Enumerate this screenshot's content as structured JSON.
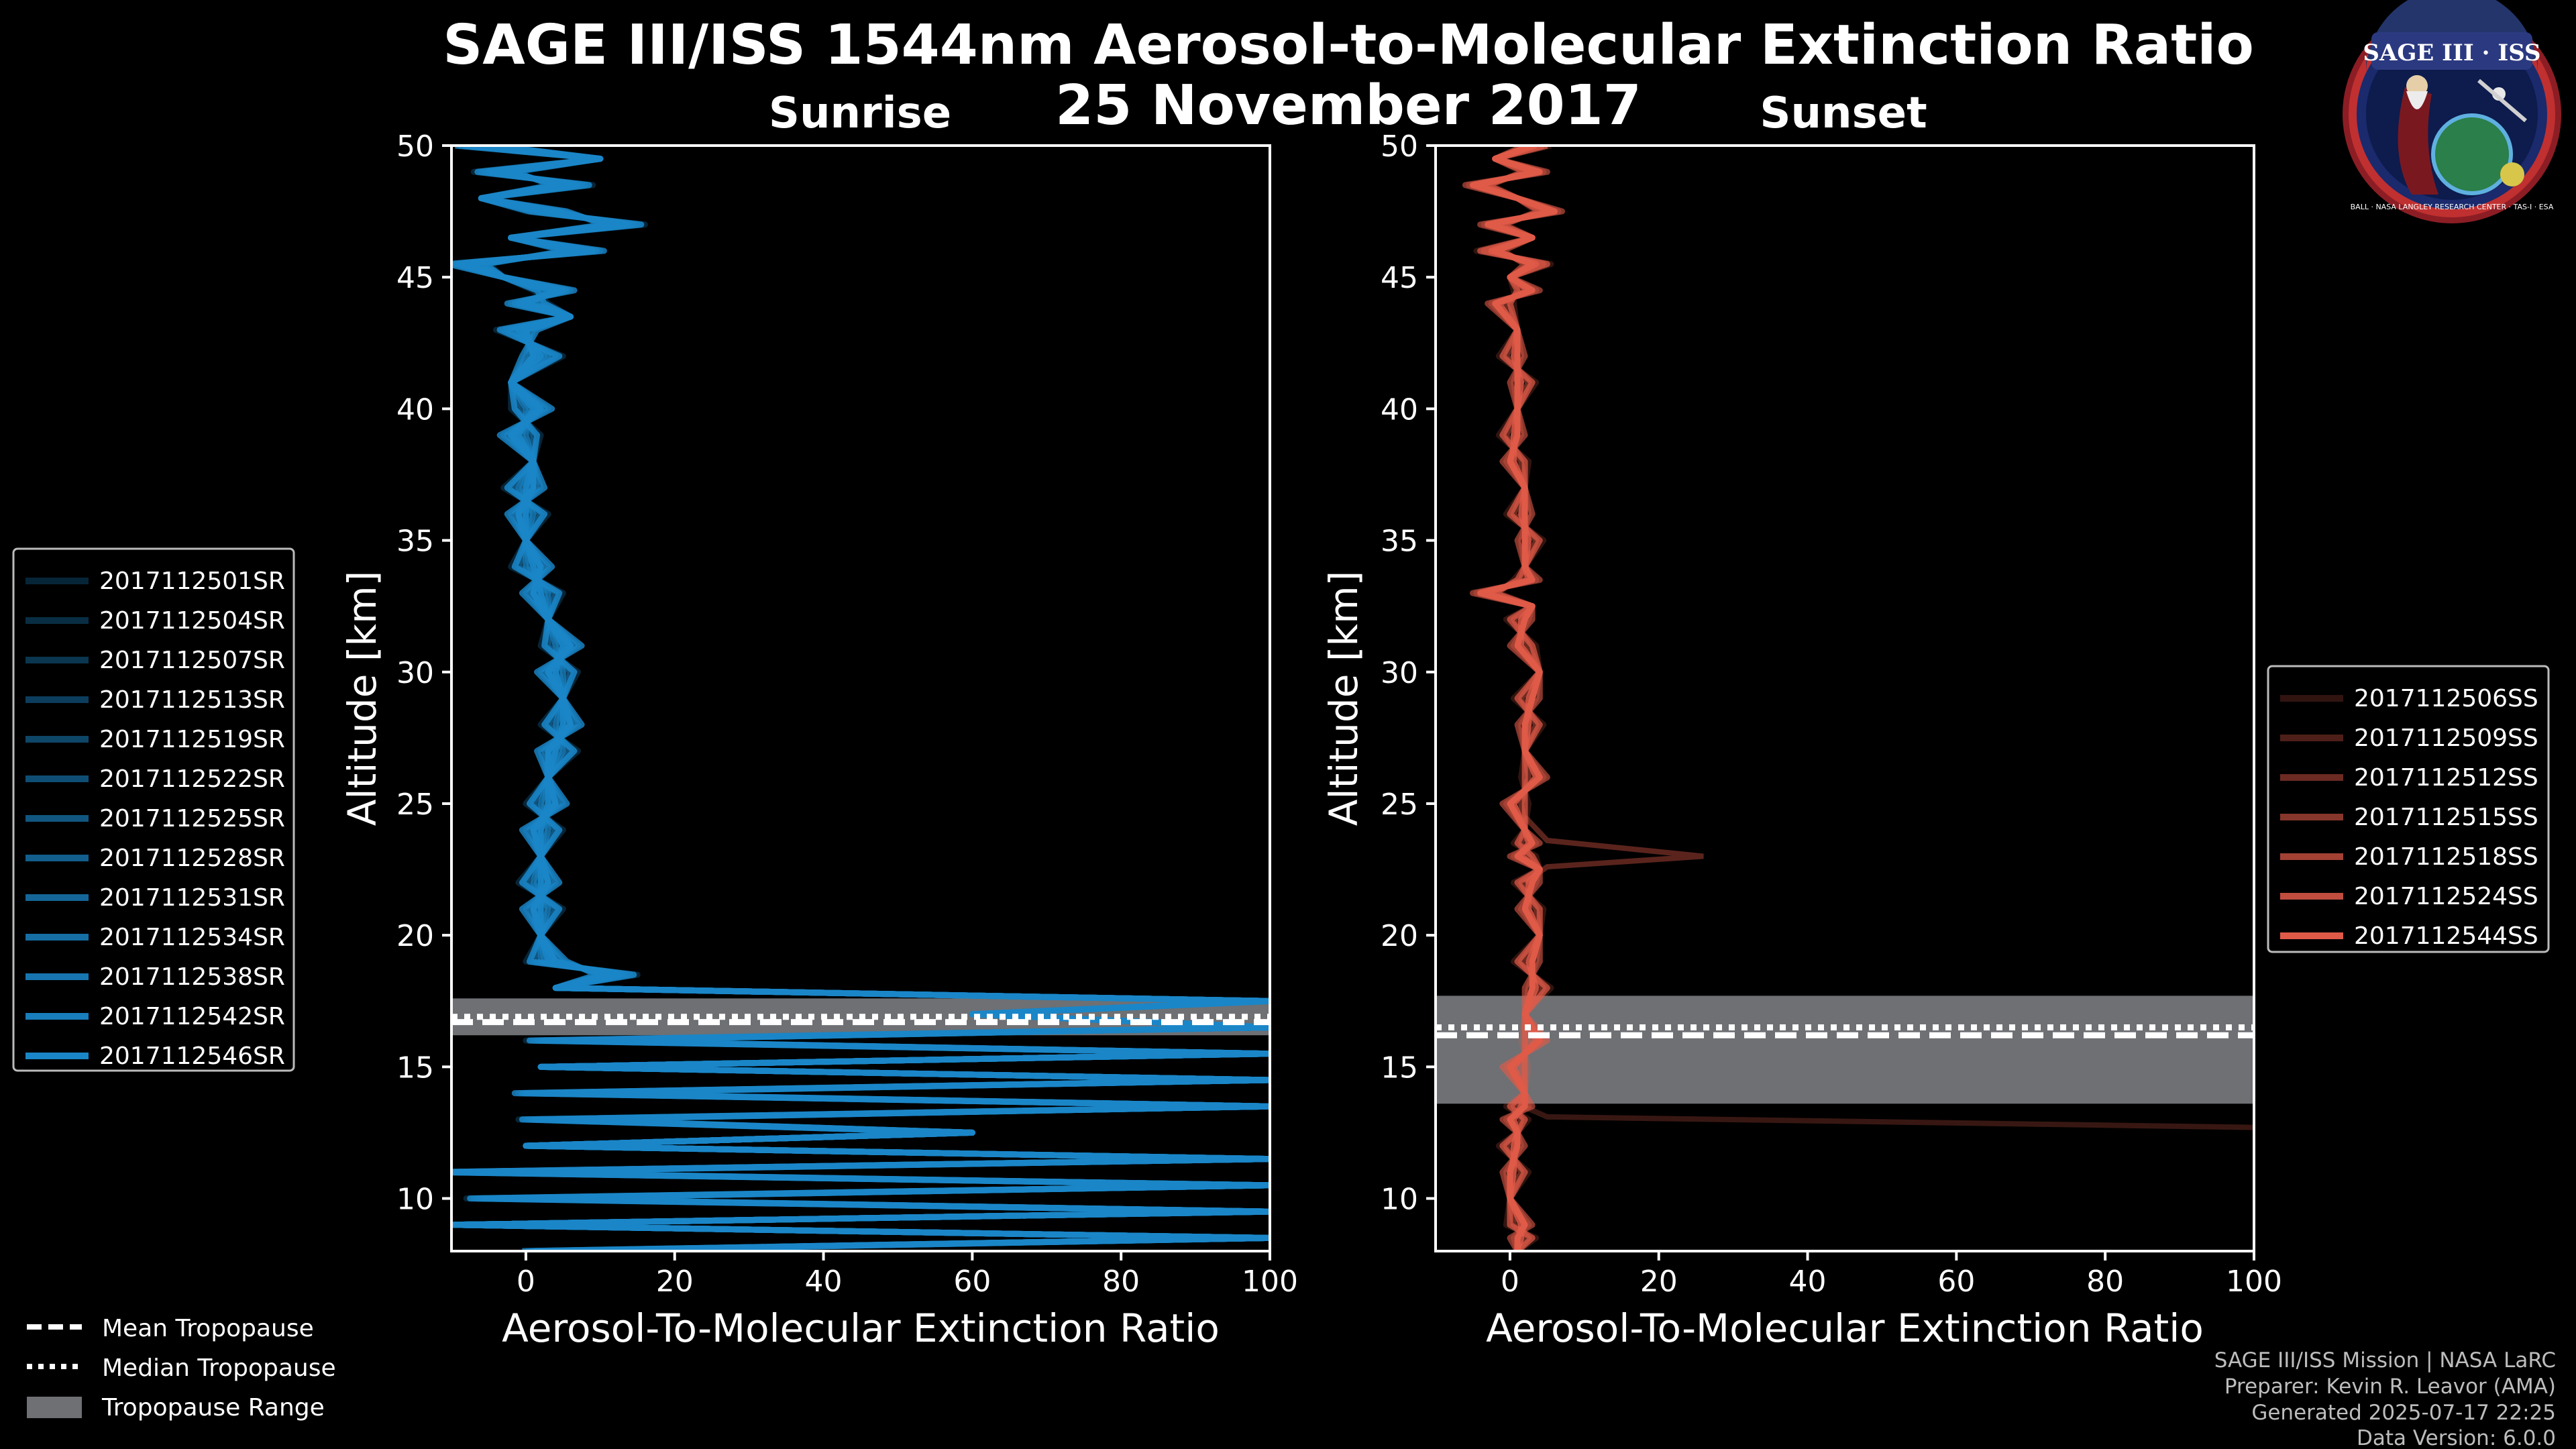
{
  "title": {
    "main": "SAGE III/ISS 1544nm Aerosol-to-Molecular Extinction Ratio",
    "date": "25 November 2017"
  },
  "logo": {
    "text": "SAGE III · ISS",
    "ring_text": "BALL · NASA LANGLEY RESEARCH CENTER · TAS-I · ESA"
  },
  "colors": {
    "sunrise": "#1a86c8",
    "sunset": "#e05a48",
    "tropopause_band": "#6e7074",
    "background": "#000000"
  },
  "credits": {
    "line1": "SAGE III/ISS Mission | NASA LaRC",
    "line2": "Preparer: Kevin R. Leavor (AMA)",
    "line3": "Generated 2025-07-17 22:25",
    "line4": "Data Version: 6.0.0"
  },
  "tropo_legend": {
    "mean": "Mean Tropopause",
    "median": "Median Tropopause",
    "range": "Tropopause Range"
  },
  "chart_data": [
    {
      "type": "line",
      "title": "Sunrise",
      "xlabel": "Aerosol-To-Molecular Extinction Ratio",
      "ylabel": "Altitude [km]",
      "xlim": [
        -10,
        100
      ],
      "ylim": [
        8,
        50
      ],
      "xticks": [
        0,
        20,
        40,
        60,
        80,
        100
      ],
      "yticks": [
        10,
        15,
        20,
        25,
        30,
        35,
        40,
        45,
        50
      ],
      "legend_position": "left",
      "tropopause": {
        "mean": 16.7,
        "median": 16.9,
        "range": [
          16.2,
          17.6
        ]
      },
      "series_names": [
        "2017112501SR",
        "2017112504SR",
        "2017112507SR",
        "2017112513SR",
        "2017112519SR",
        "2017112522SR",
        "2017112525SR",
        "2017112528SR",
        "2017112531SR",
        "2017112534SR",
        "2017112538SR",
        "2017112542SR",
        "2017112546SR"
      ],
      "series_alpha": [
        0.28,
        0.34,
        0.4,
        0.46,
        0.52,
        0.58,
        0.64,
        0.7,
        0.76,
        0.82,
        0.88,
        0.94,
        1.0
      ],
      "profile_altitudes": [
        50,
        49.5,
        49,
        48.5,
        48,
        47.5,
        47,
        46.5,
        46,
        45.5,
        45,
        44.5,
        44,
        43.5,
        43,
        42,
        41,
        40,
        39,
        38,
        37,
        36,
        35,
        34,
        33,
        32,
        31,
        30,
        29,
        28,
        27,
        26,
        25,
        24,
        23,
        22,
        21,
        20,
        19,
        18.5,
        18,
        17.5,
        17,
        16.5,
        16,
        15.5,
        15,
        14.5,
        14,
        13.5,
        13,
        12.5,
        12,
        11.5,
        11,
        10.5,
        10,
        9.5,
        9,
        8.5,
        8
      ],
      "profile_values": [
        -7,
        10,
        -4,
        6,
        -6,
        3,
        13,
        -2,
        8,
        -8,
        -3,
        4,
        0,
        6,
        -1,
        2,
        -2,
        1,
        -1,
        1,
        0,
        0,
        0,
        1,
        2,
        3,
        5,
        4,
        5,
        5,
        4,
        3,
        3,
        2,
        2,
        2,
        2,
        2,
        3,
        12,
        4,
        100,
        60,
        100,
        3,
        100,
        2,
        100,
        1,
        100,
        2,
        60,
        0,
        100,
        -10,
        100,
        -5,
        100,
        -10,
        100,
        2
      ],
      "series": [
        {
          "name": "2017112501SR",
          "dx": -3.0
        },
        {
          "name": "2017112504SR",
          "dx": -1.5
        },
        {
          "name": "2017112507SR",
          "dx": 1.0
        },
        {
          "name": "2017112513SR",
          "dx": -2.0
        },
        {
          "name": "2017112519SR",
          "dx": 2.0
        },
        {
          "name": "2017112522SR",
          "dx": -0.5
        },
        {
          "name": "2017112525SR",
          "dx": 1.5
        },
        {
          "name": "2017112528SR",
          "dx": -1.0
        },
        {
          "name": "2017112531SR",
          "dx": 0.5
        },
        {
          "name": "2017112534SR",
          "dx": 2.5
        },
        {
          "name": "2017112538SR",
          "dx": -2.5
        },
        {
          "name": "2017112542SR",
          "dx": 0.0
        },
        {
          "name": "2017112546SR",
          "dx": 1.0
        }
      ]
    },
    {
      "type": "line",
      "title": "Sunset",
      "xlabel": "Aerosol-To-Molecular Extinction Ratio",
      "ylabel": "Altitude [km]",
      "xlim": [
        -10,
        100
      ],
      "ylim": [
        8,
        50
      ],
      "xticks": [
        0,
        20,
        40,
        60,
        80,
        100
      ],
      "yticks": [
        10,
        15,
        20,
        25,
        30,
        35,
        40,
        45,
        50
      ],
      "legend_position": "right",
      "tropopause": {
        "mean": 16.2,
        "median": 16.5,
        "range": [
          13.6,
          17.7
        ]
      },
      "series_names": [
        "2017112506SS",
        "2017112509SS",
        "2017112512SS",
        "2017112515SS",
        "2017112518SS",
        "2017112524SS",
        "2017112544SS"
      ],
      "series_alpha": [
        0.22,
        0.35,
        0.48,
        0.6,
        0.72,
        0.86,
        1.0
      ],
      "profile_altitudes": [
        50,
        49.5,
        49,
        48.5,
        48,
        47.5,
        47,
        46.5,
        46,
        45.5,
        45,
        44.5,
        44,
        43,
        42,
        41,
        40,
        39,
        38,
        37,
        36,
        35,
        34,
        33.5,
        33,
        32.5,
        32,
        31,
        30,
        29,
        28,
        27,
        26,
        25,
        24,
        23.5,
        23,
        22.5,
        22,
        21,
        20,
        19,
        18,
        17,
        16,
        15,
        14,
        13.5,
        13,
        12.5,
        12,
        11,
        10,
        9,
        8.5,
        8
      ],
      "profile_values": [
        4,
        -2,
        3,
        -4,
        1,
        5,
        -2,
        3,
        -3,
        4,
        0,
        2,
        -1,
        1,
        0,
        2,
        1,
        0,
        1,
        2,
        1,
        3,
        2,
        2,
        -3,
        3,
        1,
        2,
        4,
        2,
        3,
        2,
        3,
        1,
        2,
        2,
        2,
        4,
        2,
        3,
        4,
        2,
        4,
        2,
        3,
        1,
        2,
        1,
        1,
        1,
        0,
        1,
        0,
        1,
        2,
        1
      ],
      "series": [
        {
          "name": "2017112506SS",
          "dx": -1.5
        },
        {
          "name": "2017112509SS",
          "dx": 1.5
        },
        {
          "name": "2017112512SS",
          "dx": -0.5
        },
        {
          "name": "2017112515SS",
          "dx": 2.0
        },
        {
          "name": "2017112518SS",
          "dx": -1.0
        },
        {
          "name": "2017112524SS",
          "dx": 0.5
        },
        {
          "name": "2017112544SS",
          "dx": 1.0
        }
      ],
      "annotated_features": [
        {
          "name": "2017112509SS",
          "peak_altitude_km": 23,
          "peak_value": 26
        },
        {
          "name": "2017112506SS",
          "lower_altitude_tail_km": 12.7,
          "tail_value": 100
        }
      ]
    }
  ]
}
